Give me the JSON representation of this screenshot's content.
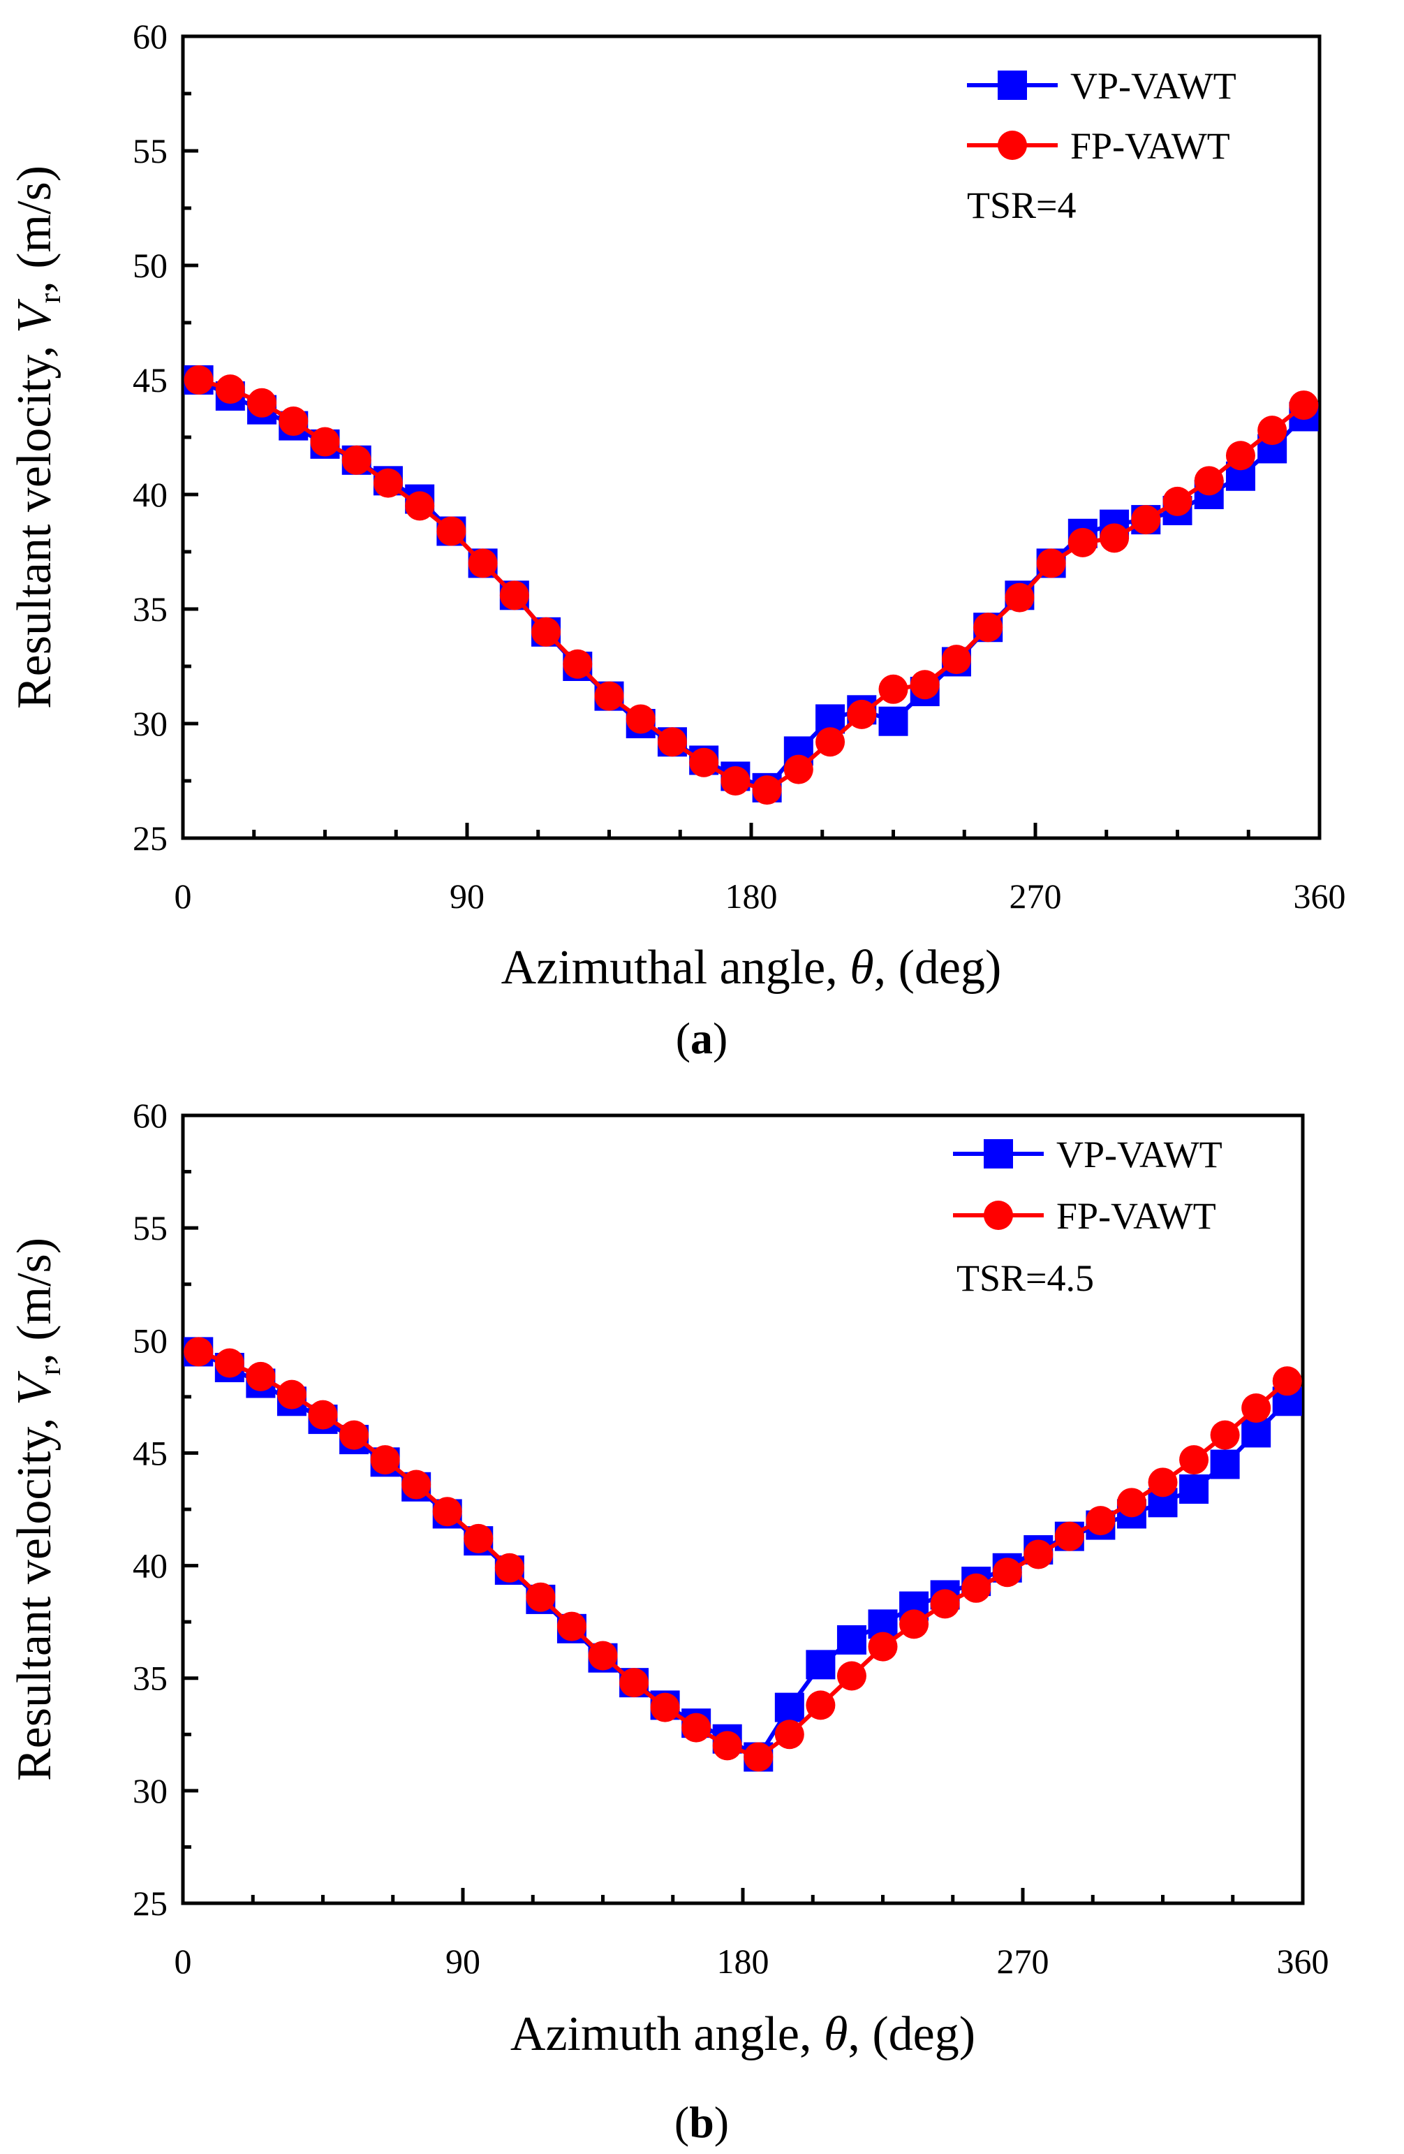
{
  "figure": {
    "caption_a": {
      "open": "(",
      "letter": "a",
      "close": ")"
    },
    "caption_b": {
      "open": "(",
      "letter": "b",
      "close": ")"
    }
  },
  "chart_data": [
    {
      "type": "line",
      "panel": "a",
      "xlabel_main": "Azimuthal angle, ",
      "xlabel_symbol": "θ",
      "xlabel_unit": ", (deg)",
      "ylabel_main": "Resultant velocity, ",
      "ylabel_symbol": "V",
      "ylabel_sub": "r",
      "ylabel_unit": ", (m/s)",
      "xlim": [
        0,
        360
      ],
      "ylim": [
        25,
        60
      ],
      "xticks": [
        0,
        90,
        180,
        270,
        360
      ],
      "yticks": [
        25,
        30,
        35,
        40,
        45,
        50,
        55,
        60
      ],
      "annotation": "TSR=4",
      "legend_position": "top-right",
      "series": [
        {
          "name": "VP-VAWT",
          "color": "#0000ff",
          "marker": "square",
          "x": [
            5,
            15,
            25,
            35,
            45,
            55,
            65,
            75,
            85,
            95,
            105,
            115,
            125,
            135,
            145,
            155,
            165,
            175,
            185,
            195,
            205,
            215,
            225,
            235,
            245,
            255,
            265,
            275,
            285,
            295,
            305,
            315,
            325,
            335,
            345,
            355
          ],
          "y": [
            45.0,
            44.3,
            43.7,
            43.0,
            42.2,
            41.5,
            40.6,
            39.8,
            38.4,
            37.0,
            35.6,
            34.0,
            32.5,
            31.2,
            30.0,
            29.2,
            28.4,
            27.7,
            27.2,
            28.8,
            30.2,
            30.6,
            30.1,
            31.4,
            32.7,
            34.2,
            35.6,
            37.0,
            38.3,
            38.7,
            38.9,
            39.3,
            40.0,
            40.8,
            42.0,
            43.4
          ]
        },
        {
          "name": "FP-VAWT",
          "color": "#ff0000",
          "marker": "circle",
          "x": [
            5,
            15,
            25,
            35,
            45,
            55,
            65,
            75,
            85,
            95,
            105,
            115,
            125,
            135,
            145,
            155,
            165,
            175,
            185,
            195,
            205,
            215,
            225,
            235,
            245,
            255,
            265,
            275,
            285,
            295,
            305,
            315,
            325,
            335,
            345,
            355
          ],
          "y": [
            45.0,
            44.6,
            44.0,
            43.2,
            42.3,
            41.5,
            40.5,
            39.5,
            38.4,
            37.0,
            35.6,
            34.0,
            32.6,
            31.2,
            30.2,
            29.2,
            28.3,
            27.5,
            27.1,
            28.0,
            29.2,
            30.4,
            31.5,
            31.7,
            32.8,
            34.2,
            35.5,
            37.0,
            37.9,
            38.1,
            38.9,
            39.7,
            40.6,
            41.7,
            42.8,
            43.9
          ]
        }
      ]
    },
    {
      "type": "line",
      "panel": "b",
      "xlabel_main": "Azimuth angle, ",
      "xlabel_symbol": "θ",
      "xlabel_unit": ", (deg)",
      "ylabel_main": "Resultant velocity, ",
      "ylabel_symbol": "V",
      "ylabel_sub": "r",
      "ylabel_unit": ", (m/s)",
      "xlim": [
        0,
        360
      ],
      "ylim": [
        25,
        60
      ],
      "xticks": [
        0,
        90,
        180,
        270,
        360
      ],
      "yticks": [
        25,
        30,
        35,
        40,
        45,
        50,
        55,
        60
      ],
      "annotation": "TSR=4.5",
      "legend_position": "top-right",
      "series": [
        {
          "name": "VP-VAWT",
          "color": "#0000ff",
          "marker": "square",
          "x": [
            5,
            15,
            25,
            35,
            45,
            55,
            65,
            75,
            85,
            95,
            105,
            115,
            125,
            135,
            145,
            155,
            165,
            175,
            185,
            195,
            205,
            215,
            225,
            235,
            245,
            255,
            265,
            275,
            285,
            295,
            305,
            315,
            325,
            335,
            345,
            355
          ],
          "y": [
            49.5,
            48.8,
            48.1,
            47.3,
            46.5,
            45.6,
            44.6,
            43.5,
            42.3,
            41.1,
            39.8,
            38.5,
            37.2,
            35.9,
            34.8,
            33.8,
            33.0,
            32.3,
            31.5,
            33.7,
            35.6,
            36.7,
            37.4,
            38.2,
            38.7,
            39.3,
            39.9,
            40.7,
            41.3,
            41.8,
            42.3,
            42.8,
            43.4,
            44.5,
            45.9,
            47.3
          ]
        },
        {
          "name": "FP-VAWT",
          "color": "#ff0000",
          "marker": "circle",
          "x": [
            5,
            15,
            25,
            35,
            45,
            55,
            65,
            75,
            85,
            95,
            105,
            115,
            125,
            135,
            145,
            155,
            165,
            175,
            185,
            195,
            205,
            215,
            225,
            235,
            245,
            255,
            265,
            275,
            285,
            295,
            305,
            315,
            325,
            335,
            345,
            355
          ],
          "y": [
            49.5,
            49.0,
            48.4,
            47.6,
            46.7,
            45.8,
            44.7,
            43.6,
            42.4,
            41.2,
            39.9,
            38.6,
            37.3,
            36.0,
            34.8,
            33.7,
            32.8,
            32.0,
            31.5,
            32.5,
            33.8,
            35.1,
            36.4,
            37.4,
            38.3,
            39.0,
            39.7,
            40.5,
            41.3,
            42.0,
            42.8,
            43.7,
            44.7,
            45.8,
            47.0,
            48.2
          ]
        }
      ]
    }
  ]
}
